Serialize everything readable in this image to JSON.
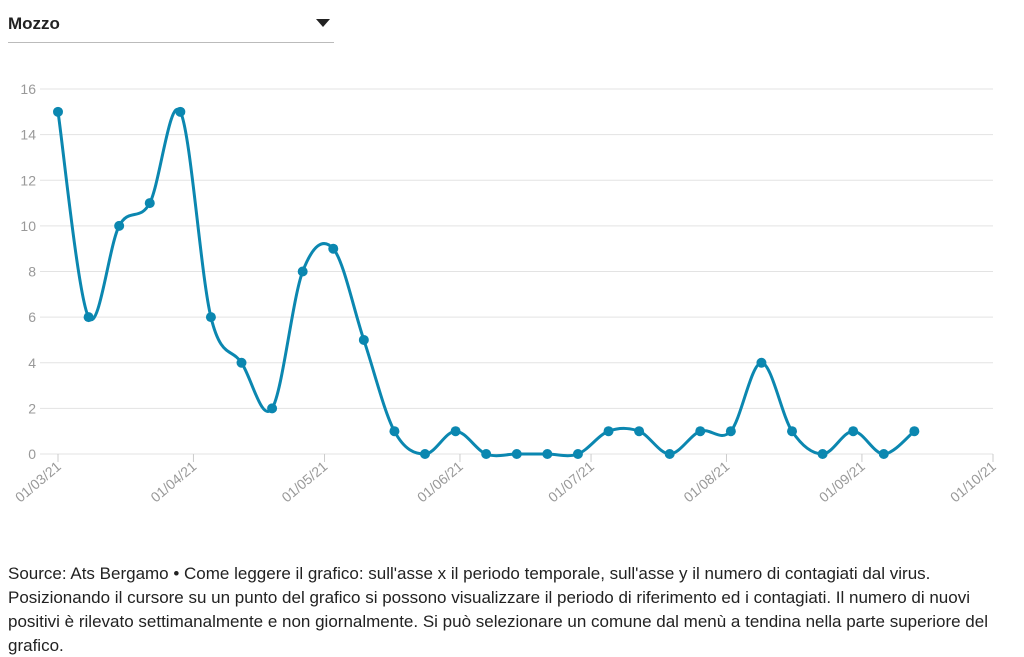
{
  "dropdown": {
    "selected": "Mozzo"
  },
  "chart_data": {
    "type": "line",
    "x": [
      "2021-03-01",
      "2021-03-08",
      "2021-03-15",
      "2021-03-22",
      "2021-03-29",
      "2021-04-05",
      "2021-04-12",
      "2021-04-19",
      "2021-04-26",
      "2021-05-03",
      "2021-05-10",
      "2021-05-17",
      "2021-05-24",
      "2021-05-31",
      "2021-06-07",
      "2021-06-14",
      "2021-06-21",
      "2021-06-28",
      "2021-07-05",
      "2021-07-12",
      "2021-07-19",
      "2021-07-26",
      "2021-08-02",
      "2021-08-09",
      "2021-08-16",
      "2021-08-23",
      "2021-08-30",
      "2021-09-06",
      "2021-09-13"
    ],
    "series": [
      {
        "color": "#0b87b0",
        "values": [
          15,
          6,
          10,
          11,
          15,
          6,
          4,
          2,
          8,
          9,
          5,
          1,
          0,
          1,
          0,
          0,
          0,
          0,
          1,
          1,
          0,
          1,
          1,
          4,
          1,
          0,
          1,
          0,
          1
        ]
      }
    ],
    "xlim": [
      "2021-03-01",
      "2021-10-01"
    ],
    "xticks": [
      {
        "value": "2021-03-01",
        "label": "01/03/21"
      },
      {
        "value": "2021-04-01",
        "label": "01/04/21"
      },
      {
        "value": "2021-05-01",
        "label": "01/05/21"
      },
      {
        "value": "2021-06-01",
        "label": "01/06/21"
      },
      {
        "value": "2021-07-01",
        "label": "01/07/21"
      },
      {
        "value": "2021-08-01",
        "label": "01/08/21"
      },
      {
        "value": "2021-09-01",
        "label": "01/09/21"
      },
      {
        "value": "2021-10-01",
        "label": "01/10/21"
      }
    ],
    "ylim": [
      0,
      16
    ],
    "yticks": [
      0,
      2,
      4,
      6,
      8,
      10,
      12,
      14,
      16
    ],
    "grid": true
  },
  "source": "Source: Ats Bergamo • Come leggere il grafico: sull'asse x il periodo temporale, sull'asse y il numero di contagiati dal virus. Posizionando il cursore su un punto del grafico si possono visualizzare il periodo di riferimento ed i contagiati. Il numero di nuovi positivi è rilevato settimanalmente e non giornalmente. Si può selezionare un comune dal menù a tendina nella parte superiore del grafico."
}
